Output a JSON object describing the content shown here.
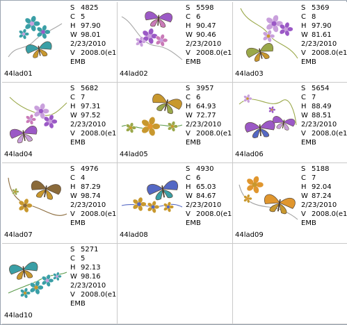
{
  "designs": [
    {
      "file": "44lad01",
      "stats": {
        "S": "4825",
        "C": "5",
        "H": "97.90",
        "W": "98.01"
      },
      "date": "2/23/2010",
      "version": "2008.0(e1",
      "format": "EMB",
      "motif": "flowers-butterfly"
    },
    {
      "file": "44lad02",
      "stats": {
        "S": "5598",
        "C": "6",
        "H": "90.47",
        "W": "90.46"
      },
      "date": "2/23/2010",
      "version": "2008.0(e1",
      "format": "EMB",
      "motif": "butterfly-flowers"
    },
    {
      "file": "44lad03",
      "stats": {
        "S": "5369",
        "C": "8",
        "H": "97.90",
        "W": "81.61"
      },
      "date": "2/23/2010",
      "version": "2008.0(e1",
      "format": "EMB",
      "motif": "flowers-butterfly"
    },
    {
      "file": "44lad04",
      "stats": {
        "S": "5682",
        "C": "7",
        "H": "97.31",
        "W": "97.52"
      },
      "date": "2/23/2010",
      "version": "2008.0(e1",
      "format": "EMB",
      "motif": "flowers-butterfly"
    },
    {
      "file": "44lad05",
      "stats": {
        "S": "3957",
        "C": "6",
        "H": "64.93",
        "W": "72.77"
      },
      "date": "2/23/2010",
      "version": "2008.0(e1",
      "format": "EMB",
      "motif": "butterfly-flower"
    },
    {
      "file": "44lad06",
      "stats": {
        "S": "5654",
        "C": "7",
        "H": "88.49",
        "W": "88.51"
      },
      "date": "2/23/2010",
      "version": "2008.0(e1",
      "format": "EMB",
      "motif": "butterflies-scroll"
    },
    {
      "file": "44lad07",
      "stats": {
        "S": "4976",
        "C": "4",
        "H": "87.29",
        "W": "98.74"
      },
      "date": "2/23/2010",
      "version": "2008.0(e1",
      "format": "EMB",
      "motif": "butterfly-scroll"
    },
    {
      "file": "44lad08",
      "stats": {
        "S": "4930",
        "C": "6",
        "H": "65.03",
        "W": "84.67"
      },
      "date": "2/23/2010",
      "version": "2008.0(e1",
      "format": "EMB",
      "motif": "butterfly-border"
    },
    {
      "file": "44lad09",
      "stats": {
        "S": "5188",
        "C": "7",
        "H": "92.04",
        "W": "87.24"
      },
      "date": "2/23/2010",
      "version": "2008.0(e1",
      "format": "EMB",
      "motif": "butterfly-corner"
    },
    {
      "file": "44lad10",
      "stats": {
        "S": "5271",
        "C": "5",
        "H": "92.13",
        "W": "98.16"
      },
      "date": "2/23/2010",
      "version": "2008.0(e1",
      "format": "EMB",
      "motif": "butterfly-flowers"
    }
  ],
  "palette": {
    "grid_line": "#c9c9c9",
    "teal": "#3a9fa6",
    "purple": "#9b59c6",
    "lilac": "#c9a0dc",
    "gold": "#c8982e",
    "olive": "#9aa84a",
    "blue": "#5468c4",
    "orange": "#e0962e",
    "brown": "#8a6a3a",
    "rose": "#c97ab8",
    "green": "#5b9a4a"
  }
}
